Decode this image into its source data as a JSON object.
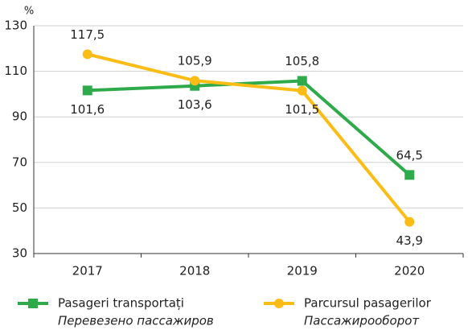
{
  "chart_data": {
    "type": "line",
    "unit": "%",
    "categories": [
      "2017",
      "2018",
      "2019",
      "2020"
    ],
    "series": [
      {
        "name": "Pasageri transportați",
        "name_alt": "Перевезено пассажиров",
        "color": "#2eaa4a",
        "marker": "square",
        "values": [
          101.6,
          103.6,
          105.8,
          64.5
        ],
        "value_labels": [
          "101,6",
          "103,6",
          "105,8",
          "64,5"
        ]
      },
      {
        "name": "Parcursul pasagerilor",
        "name_alt": "Пассажирооборот",
        "color": "#fbbc16",
        "marker": "circle",
        "values": [
          117.5,
          105.9,
          101.5,
          43.9
        ],
        "value_labels": [
          "117,5",
          "105,9",
          "101,5",
          "43,9"
        ]
      }
    ],
    "ylim": [
      30,
      130
    ],
    "yticks": [
      30,
      50,
      70,
      90,
      110,
      130
    ],
    "grid": true
  }
}
